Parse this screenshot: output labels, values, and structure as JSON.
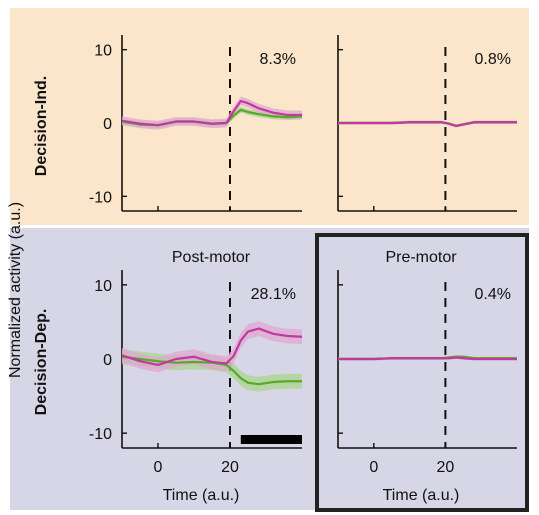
{
  "colors": {
    "top_background": "#fbe6cc",
    "bottom_background": "#d6d6e6",
    "highlight_border": "#222222",
    "green": "#5aa829",
    "green_band": "#a9d48c",
    "magenta": "#c0399f",
    "magenta_band": "#e0a7d2"
  },
  "figure": {
    "ylabel": "Normalized activity (a.u.)",
    "row_labels": [
      "Decision-Ind.",
      "Decision-Dep."
    ],
    "col_titles": [
      "Post-motor",
      "Pre-motor"
    ],
    "xlabel": "Time (a.u.)"
  },
  "chart_data": [
    {
      "type": "line",
      "row": "Decision-Ind.",
      "annotation": "8.3%",
      "xlim": [
        -10,
        40
      ],
      "ylim": [
        -12,
        12
      ],
      "yticks": [
        10,
        0,
        -10
      ],
      "xticks": [
        0,
        20
      ],
      "event_line_x": 20,
      "x": [
        -10,
        -5,
        0,
        5,
        10,
        15,
        19,
        21,
        23,
        25,
        28,
        32,
        36,
        40
      ],
      "series": [
        {
          "color": "green",
          "values": [
            0.2,
            -0.2,
            -0.3,
            0.2,
            0.2,
            -0.1,
            0.0,
            1.0,
            1.8,
            1.5,
            1.2,
            0.9,
            0.8,
            0.9
          ],
          "band": 0.4
        },
        {
          "color": "magenta",
          "values": [
            0.3,
            -0.1,
            -0.3,
            0.2,
            0.2,
            -0.1,
            0.0,
            1.6,
            3.0,
            2.7,
            2.0,
            1.4,
            1.1,
            1.1
          ],
          "band": 0.6
        }
      ]
    },
    {
      "type": "line",
      "row": "Decision-Ind.",
      "annotation": "0.8%",
      "xlim": [
        -10,
        40
      ],
      "ylim": [
        -12,
        12
      ],
      "yticks": [
        10,
        0,
        -10
      ],
      "xticks": [
        0,
        20
      ],
      "event_line_x": 20,
      "x": [
        -10,
        -5,
        0,
        5,
        10,
        15,
        19,
        21,
        23,
        25,
        28,
        32,
        36,
        40
      ],
      "series": [
        {
          "color": "green",
          "values": [
            0,
            0,
            0,
            0,
            0.1,
            0.1,
            0.1,
            -0.1,
            -0.4,
            -0.2,
            0.1,
            0.1,
            0.1,
            0.1
          ],
          "band": 0.2
        },
        {
          "color": "magenta",
          "values": [
            0,
            0,
            0,
            0,
            0.1,
            0.1,
            0.1,
            -0.1,
            -0.4,
            -0.2,
            0.1,
            0.1,
            0.1,
            0.1
          ],
          "band": 0.2
        }
      ]
    },
    {
      "type": "line",
      "row": "Decision-Dep.",
      "title": "Post-motor",
      "annotation": "28.1%",
      "xlim": [
        -10,
        40
      ],
      "ylim": [
        -12,
        12
      ],
      "yticks": [
        10,
        0,
        -10
      ],
      "xticks": [
        0,
        20
      ],
      "event_line_x": 20,
      "significance_bar": [
        23,
        40
      ],
      "x": [
        -10,
        -5,
        0,
        5,
        10,
        15,
        19,
        21,
        23,
        25,
        28,
        32,
        36,
        40
      ],
      "series": [
        {
          "color": "green",
          "values": [
            0.3,
            0.0,
            -0.3,
            -0.5,
            -0.4,
            -0.5,
            -0.8,
            -1.6,
            -2.6,
            -3.2,
            -3.4,
            -3.1,
            -3.0,
            -3.0
          ],
          "band": 1.0
        },
        {
          "color": "magenta",
          "values": [
            0.5,
            -0.3,
            -0.8,
            0.0,
            0.3,
            -0.4,
            -0.6,
            0.4,
            2.5,
            3.7,
            4.1,
            3.4,
            3.1,
            3.0
          ],
          "band": 1.0
        }
      ]
    },
    {
      "type": "line",
      "row": "Decision-Dep.",
      "title": "Pre-motor",
      "annotation": "0.4%",
      "xlim": [
        -10,
        40
      ],
      "ylim": [
        -12,
        12
      ],
      "yticks": [
        10,
        0,
        -10
      ],
      "xticks": [
        0,
        20
      ],
      "event_line_x": 20,
      "highlighted": true,
      "x": [
        -10,
        -5,
        0,
        5,
        10,
        15,
        19,
        21,
        23,
        25,
        28,
        32,
        36,
        40
      ],
      "series": [
        {
          "color": "green",
          "values": [
            0,
            0,
            0,
            0.1,
            0.1,
            0.1,
            0.1,
            0.2,
            0.3,
            0.3,
            0.1,
            0.1,
            0.1,
            0.1
          ],
          "band": 0.2
        },
        {
          "color": "magenta",
          "values": [
            0,
            0,
            0,
            0.1,
            0.1,
            0.1,
            0.1,
            0.1,
            0.2,
            0.1,
            0.0,
            0.0,
            0.0,
            0.0
          ],
          "band": 0.2
        }
      ]
    }
  ]
}
